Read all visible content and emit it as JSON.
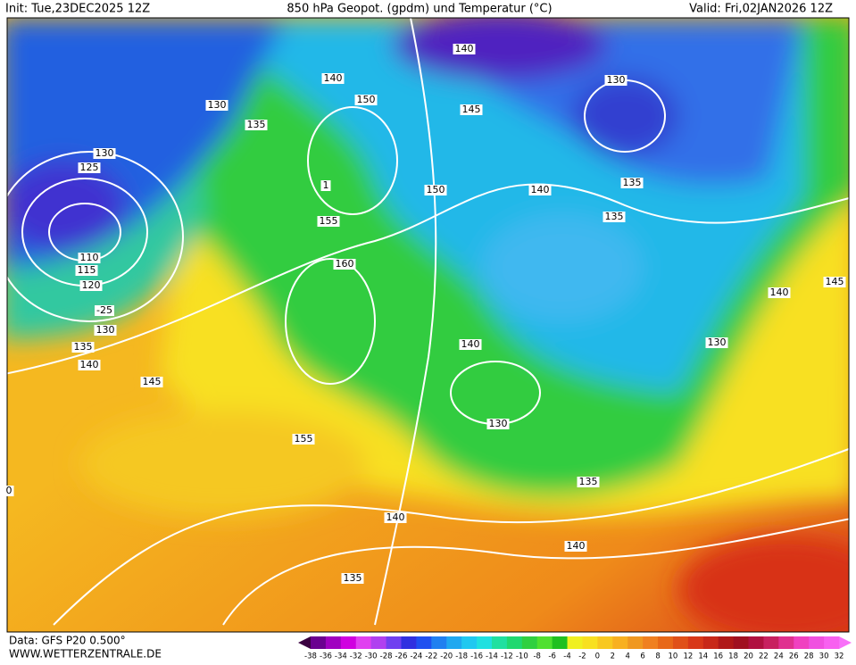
{
  "header": {
    "init": "Init: Tue,23DEC2025 12Z",
    "title": "850 hPa Geopot. (gpdm) und Temperatur (°C)",
    "valid": "Valid: Fri,02JAN2026 12Z"
  },
  "map": {
    "contour_labels": [
      "140",
      "140",
      "150",
      "145",
      "130",
      "135",
      "130",
      "130",
      "125",
      "1",
      "150",
      "140",
      "135",
      "135",
      "155",
      "160",
      "110",
      "115",
      "120",
      "-25",
      "130",
      "135",
      "140",
      "145",
      "140",
      "130",
      "155",
      "140",
      "145",
      "130",
      "135",
      "140",
      "140",
      "135",
      "0"
    ]
  },
  "legend": {
    "labels": [
      -38,
      -36,
      -34,
      -32,
      -30,
      -28,
      -26,
      -24,
      -22,
      -20,
      -18,
      -16,
      -14,
      -12,
      -10,
      -8,
      -6,
      -4,
      -2,
      0,
      2,
      4,
      6,
      8,
      10,
      12,
      14,
      16,
      18,
      20,
      22,
      24,
      26,
      28,
      30,
      32
    ]
  },
  "footer": {
    "source": "Data: GFS P20 0.500°",
    "site": "WWW.WETTERZENTRALE.DE"
  }
}
